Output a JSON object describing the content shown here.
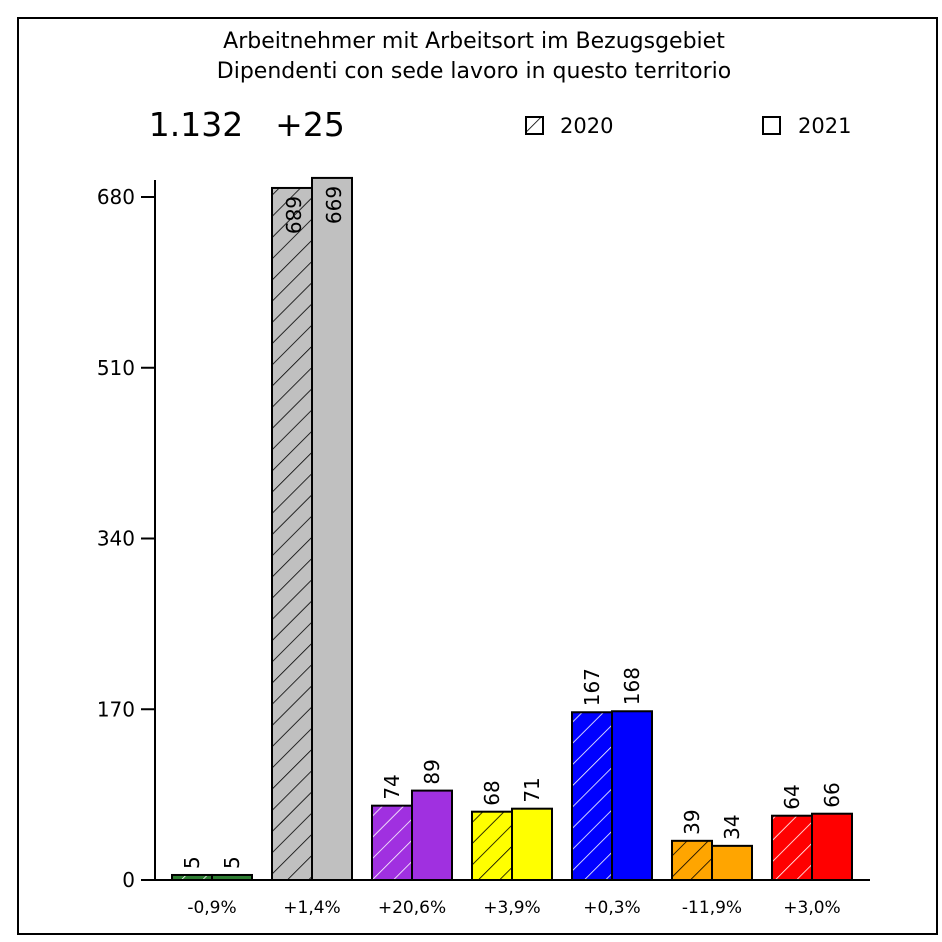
{
  "chart_data": {
    "type": "bar",
    "title": "Arbeitnehmer mit Arbeitsort im Bezugsgebiet",
    "subtitle": "Dipendenti con sede lavoro in questo territorio",
    "total": "1.132",
    "total_change": "+25",
    "legend": [
      {
        "name": "2020",
        "pattern": "hatched"
      },
      {
        "name": "2021",
        "pattern": "solid"
      }
    ],
    "legend_position": "top-right",
    "yticks": [
      "0",
      "170",
      "340",
      "510",
      "680"
    ],
    "ylim": [
      0,
      700
    ],
    "series": [
      {
        "name": "2020",
        "values": [
          5,
          689,
          74,
          68,
          167,
          39,
          64
        ]
      },
      {
        "name": "2021",
        "values": [
          5,
          699,
          89,
          71,
          168,
          34,
          66
        ]
      }
    ],
    "changes": [
      "-0,9%",
      "+1,4%",
      "+20,6%",
      "+3,9%",
      "+0,3%",
      "-11,9%",
      "+3,0%"
    ],
    "colors": [
      "#2e7d32",
      "#c0c0c0",
      "#a030e0",
      "#ffff00",
      "#0000ff",
      "#ffa500",
      "#ff0000"
    ],
    "hatch_colors": [
      "#ffffff",
      "#000000",
      "#ffffff",
      "#000000",
      "#ffffff",
      "#000000",
      "#ffffff"
    ],
    "grid": false
  }
}
